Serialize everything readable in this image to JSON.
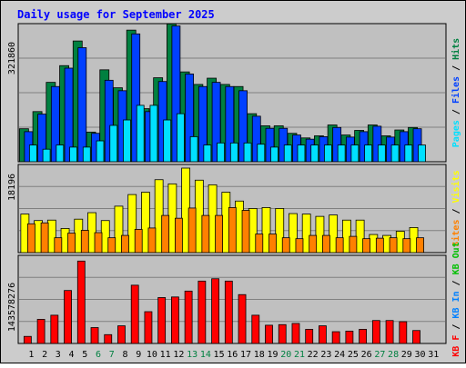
{
  "chart_data": [
    {
      "type": "bar",
      "title": "Daily usage for September 2025",
      "categories": [
        "1",
        "2",
        "3",
        "4",
        "5",
        "6",
        "7",
        "8",
        "9",
        "10",
        "11",
        "12",
        "13",
        "14",
        "15",
        "16",
        "17",
        "18",
        "19",
        "20",
        "21",
        "22",
        "23",
        "24",
        "25",
        "26",
        "27",
        "28",
        "29",
        "30",
        "31"
      ],
      "weekend_days": [
        6,
        7,
        13,
        14,
        20,
        21,
        27,
        28
      ],
      "ymax_label": "321860",
      "ylim": [
        0,
        321860
      ],
      "grid": true,
      "legend": [
        {
          "label": "Pages",
          "color": "#00e0ff"
        },
        {
          "label": "Files",
          "color": "#0040ff"
        },
        {
          "label": "Hits",
          "color": "#008040"
        }
      ],
      "series": [
        {
          "name": "Hits",
          "color": "#008040",
          "values": [
            79000,
            120000,
            190000,
            230000,
            289000,
            71000,
            220000,
            177000,
            315000,
            127000,
            201000,
            330000,
            215000,
            185000,
            200000,
            185000,
            180000,
            115000,
            86000,
            86000,
            68000,
            57000,
            62000,
            88000,
            64000,
            75000,
            88000,
            62000,
            76000,
            82000,
            0
          ]
        },
        {
          "name": "Files",
          "color": "#0040ff",
          "values": [
            72000,
            114000,
            180000,
            224000,
            273000,
            68000,
            195000,
            170000,
            306000,
            120000,
            192000,
            325000,
            210000,
            180000,
            190000,
            180000,
            170000,
            109000,
            80000,
            80000,
            64000,
            54000,
            60000,
            82000,
            59000,
            72000,
            85000,
            59000,
            72000,
            79000,
            0
          ]
        },
        {
          "name": "Pages",
          "color": "#00e0ff",
          "values": [
            40000,
            30000,
            40000,
            35000,
            35000,
            50000,
            87000,
            100000,
            135000,
            135000,
            100000,
            115000,
            60000,
            40000,
            45000,
            45000,
            45000,
            42000,
            35000,
            40000,
            40000,
            40000,
            40000,
            40000,
            40000,
            40000,
            40000,
            40000,
            40000,
            40000,
            0
          ]
        }
      ]
    },
    {
      "type": "bar",
      "ymax_label": "18196",
      "ylim": [
        0,
        18196
      ],
      "grid": true,
      "legend": [
        {
          "label": "Sites",
          "color": "#ff8000"
        },
        {
          "label": "Visits",
          "color": "#ffff00"
        }
      ],
      "series": [
        {
          "name": "Visits",
          "color": "#ffff00",
          "values": [
            8300,
            6900,
            7000,
            5200,
            7200,
            8600,
            6900,
            10000,
            12500,
            13000,
            15700,
            14800,
            18196,
            15600,
            14600,
            13000,
            11100,
            9500,
            9700,
            9500,
            8400,
            8300,
            7800,
            8100,
            7000,
            7000,
            3900,
            3700,
            4600,
            5400,
            0
          ]
        },
        {
          "name": "Sites",
          "color": "#ff8000",
          "values": [
            6200,
            6400,
            3200,
            4200,
            4800,
            4300,
            3200,
            3700,
            5000,
            5300,
            8000,
            7400,
            9600,
            8000,
            8000,
            9700,
            9100,
            4000,
            4000,
            3200,
            3000,
            3700,
            3700,
            3200,
            3500,
            3000,
            3100,
            3200,
            3000,
            3200,
            0
          ]
        }
      ]
    },
    {
      "type": "bar",
      "ymax_label": "143578276",
      "ylim": [
        0,
        143578276
      ],
      "grid": true,
      "legend": [
        {
          "label": "KB F",
          "color": "#ff0000"
        },
        {
          "label": "KB In",
          "color": "#0080ff"
        },
        {
          "label": "KB Out",
          "color": "#00c000"
        }
      ],
      "series": [
        {
          "name": "KB F",
          "color": "#ff0000",
          "values": [
            12000000,
            41000000,
            48000000,
            90000000,
            140000000,
            27000000,
            15000000,
            30000000,
            99000000,
            54000000,
            78000000,
            79000000,
            89000000,
            106000000,
            110000000,
            106000000,
            83000000,
            48000000,
            31000000,
            32000000,
            34000000,
            24000000,
            30000000,
            20000000,
            21000000,
            24000000,
            39000000,
            39000000,
            37000000,
            22000000,
            0
          ]
        }
      ]
    }
  ]
}
